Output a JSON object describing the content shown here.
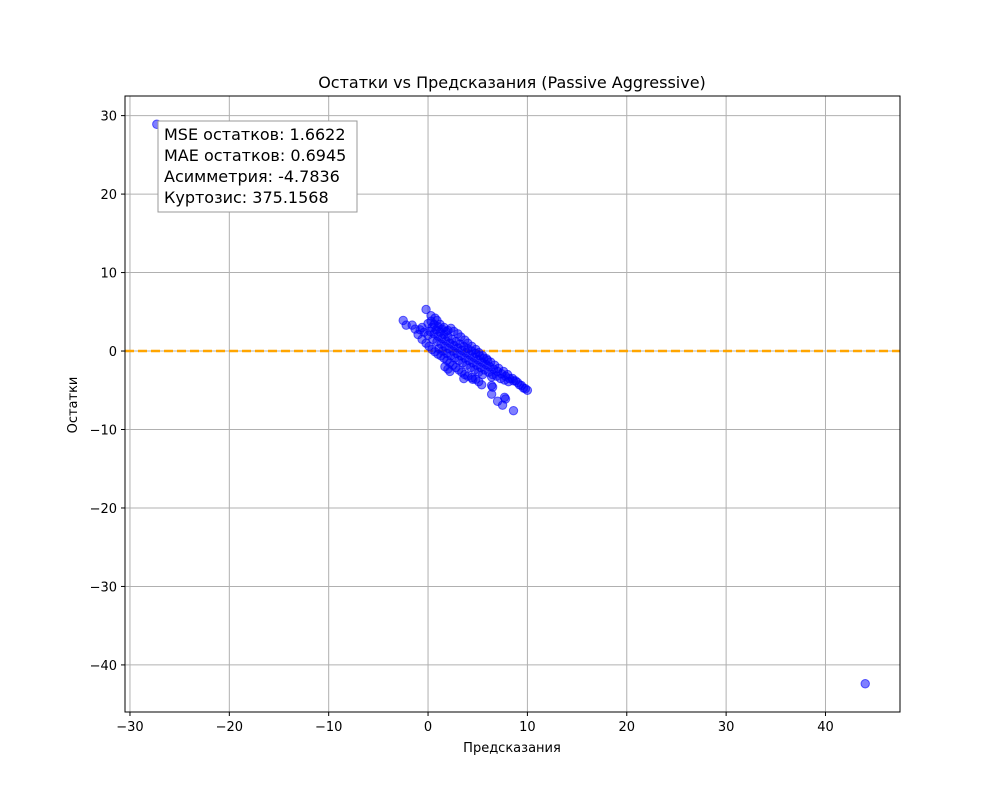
{
  "chart_data": {
    "type": "scatter",
    "title": "Остатки vs Предсказания (Passive Aggressive)",
    "xlabel": "Предсказания",
    "ylabel": "Остатки",
    "xlim": [
      -30.5,
      47.5
    ],
    "ylim": [
      -46,
      32.5
    ],
    "x_ticks": [
      -30,
      -20,
      -10,
      0,
      10,
      20,
      30,
      40
    ],
    "y_ticks": [
      30,
      20,
      10,
      0,
      -10,
      -20,
      -30,
      -40
    ],
    "x_tick_labels": [
      "−30",
      "−20",
      "−10",
      "0",
      "10",
      "20",
      "30",
      "40"
    ],
    "y_tick_labels": [
      "30",
      "20",
      "10",
      "0",
      "−10",
      "−20",
      "−30",
      "−40"
    ],
    "grid": true,
    "reference_line": {
      "y": 0,
      "color": "#ffa500",
      "style": "dashed"
    },
    "point_color": "#0000ff",
    "stats_box": [
      "MSE остатков: 1.6622",
      "MAE остатков: 0.6945",
      "Асимметрия: -4.7836",
      "Куртозис: 375.1568"
    ],
    "series": [
      {
        "points": [
          [
            -27.3,
            28.9
          ],
          [
            44.0,
            -42.4
          ],
          [
            -2.5,
            3.9
          ],
          [
            -2.2,
            3.3
          ],
          [
            -1.6,
            3.3
          ],
          [
            -1.3,
            2.8
          ],
          [
            -0.6,
            3.0
          ],
          [
            -0.2,
            5.3
          ],
          [
            0.3,
            4.5
          ],
          [
            0.7,
            4.2
          ],
          [
            0.9,
            3.9
          ],
          [
            1.2,
            3.4
          ],
          [
            1.6,
            3.0
          ],
          [
            2.0,
            2.6
          ],
          [
            2.3,
            2.9
          ],
          [
            2.6,
            2.5
          ],
          [
            3.0,
            2.2
          ],
          [
            3.3,
            1.8
          ],
          [
            3.7,
            1.4
          ],
          [
            4.0,
            1.0
          ],
          [
            4.4,
            0.6
          ],
          [
            4.8,
            0.2
          ],
          [
            5.1,
            -0.2
          ],
          [
            5.5,
            -0.6
          ],
          [
            5.9,
            -1.0
          ],
          [
            6.3,
            -1.4
          ],
          [
            6.7,
            -1.8
          ],
          [
            7.1,
            -2.2
          ],
          [
            7.6,
            -2.6
          ],
          [
            8.0,
            -3.0
          ],
          [
            8.5,
            -3.5
          ],
          [
            9.0,
            -4.0
          ],
          [
            9.4,
            -4.4
          ],
          [
            9.8,
            -4.8
          ],
          [
            10.0,
            -5.0
          ],
          [
            9.6,
            -4.7
          ],
          [
            9.2,
            -4.3
          ],
          [
            8.8,
            -3.8
          ],
          [
            -1.0,
            2.1
          ],
          [
            -0.6,
            1.5
          ],
          [
            -0.2,
            1.0
          ],
          [
            0.1,
            0.6
          ],
          [
            0.4,
            0.2
          ],
          [
            0.7,
            -0.1
          ],
          [
            1.0,
            -0.4
          ],
          [
            1.3,
            -0.6
          ],
          [
            1.6,
            -0.9
          ],
          [
            1.9,
            -1.2
          ],
          [
            2.2,
            -1.5
          ],
          [
            2.5,
            -1.8
          ],
          [
            2.8,
            -2.1
          ],
          [
            3.1,
            -2.4
          ],
          [
            3.4,
            -2.7
          ],
          [
            3.7,
            -3.0
          ],
          [
            4.0,
            -3.2
          ],
          [
            4.4,
            -3.4
          ],
          [
            4.8,
            -3.6
          ],
          [
            5.1,
            -3.9
          ],
          [
            5.4,
            -4.3
          ],
          [
            3.6,
            -3.5
          ],
          [
            4.5,
            -3.6
          ],
          [
            2.2,
            -2.6
          ],
          [
            2.0,
            -2.3
          ],
          [
            1.7,
            -2.0
          ],
          [
            6.4,
            -3.3
          ],
          [
            6.4,
            -4.4
          ],
          [
            6.5,
            -4.6
          ],
          [
            6.4,
            -5.5
          ],
          [
            7.0,
            -6.4
          ],
          [
            7.5,
            -6.9
          ],
          [
            7.7,
            -5.9
          ],
          [
            7.8,
            -6.1
          ],
          [
            8.6,
            -7.6
          ],
          [
            0.5,
            1.5
          ],
          [
            0.9,
            1.2
          ],
          [
            1.3,
            0.9
          ],
          [
            1.7,
            0.6
          ],
          [
            2.1,
            0.3
          ],
          [
            2.5,
            0.0
          ],
          [
            2.9,
            -0.3
          ],
          [
            3.3,
            -0.6
          ],
          [
            3.7,
            -0.9
          ],
          [
            4.1,
            -1.2
          ],
          [
            4.5,
            -1.5
          ],
          [
            4.9,
            -1.8
          ],
          [
            5.3,
            -2.1
          ],
          [
            5.7,
            -2.4
          ],
          [
            6.1,
            -2.7
          ],
          [
            6.5,
            -3.0
          ],
          [
            6.9,
            -3.2
          ],
          [
            7.3,
            -3.5
          ],
          [
            7.7,
            -3.7
          ],
          [
            8.1,
            -3.9
          ],
          [
            0.2,
            2.5
          ],
          [
            0.6,
            2.2
          ],
          [
            1.0,
            1.9
          ],
          [
            1.4,
            1.6
          ],
          [
            1.8,
            1.3
          ],
          [
            2.2,
            1.0
          ],
          [
            2.6,
            0.7
          ],
          [
            3.0,
            0.4
          ],
          [
            3.4,
            0.1
          ],
          [
            3.8,
            -0.2
          ],
          [
            4.2,
            -0.5
          ],
          [
            4.6,
            -0.8
          ],
          [
            5.0,
            -1.1
          ],
          [
            5.4,
            -1.4
          ],
          [
            5.8,
            -1.7
          ],
          [
            6.2,
            -2.0
          ],
          [
            6.6,
            -2.3
          ],
          [
            7.0,
            -2.6
          ],
          [
            7.4,
            -2.9
          ],
          [
            7.8,
            -3.2
          ],
          [
            8.2,
            -3.5
          ],
          [
            8.6,
            -3.8
          ],
          [
            -0.8,
            2.7
          ],
          [
            -0.4,
            2.4
          ],
          [
            0.0,
            2.0
          ],
          [
            0.4,
            3.0
          ],
          [
            0.8,
            2.7
          ],
          [
            1.2,
            2.4
          ],
          [
            1.6,
            2.1
          ],
          [
            2.0,
            1.8
          ],
          [
            2.4,
            1.5
          ],
          [
            2.8,
            1.2
          ],
          [
            3.2,
            0.9
          ],
          [
            3.6,
            0.6
          ],
          [
            4.0,
            0.3
          ],
          [
            4.4,
            0.0
          ],
          [
            4.8,
            -0.3
          ],
          [
            5.2,
            -0.6
          ],
          [
            5.6,
            -0.9
          ],
          [
            6.0,
            -1.2
          ],
          [
            1.1,
            0.3
          ],
          [
            1.5,
            0.0
          ],
          [
            1.9,
            -0.3
          ],
          [
            2.3,
            -0.6
          ],
          [
            2.7,
            -0.9
          ],
          [
            3.1,
            -1.2
          ],
          [
            3.5,
            -1.5
          ],
          [
            3.9,
            -1.8
          ],
          [
            4.3,
            -2.1
          ],
          [
            4.7,
            -2.4
          ],
          [
            5.1,
            -2.7
          ],
          [
            5.5,
            -3.0
          ],
          [
            0.0,
            3.5
          ],
          [
            0.3,
            3.8
          ],
          [
            0.6,
            3.4
          ],
          [
            1.0,
            3.1
          ],
          [
            1.4,
            2.8
          ],
          [
            1.8,
            2.5
          ]
        ]
      }
    ]
  }
}
